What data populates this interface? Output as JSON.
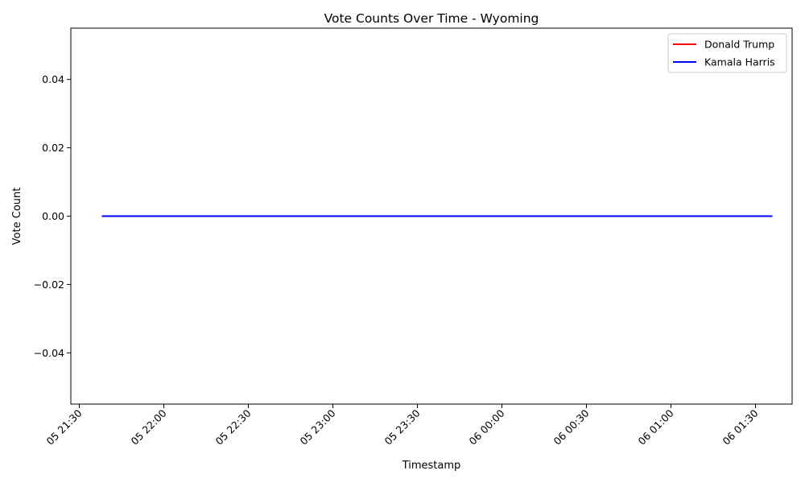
{
  "chart_data": {
    "type": "line",
    "title": "Vote Counts Over Time - Wyoming",
    "xlabel": "Timestamp",
    "ylabel": "Vote Count",
    "x_ticks": [
      "05 21:30",
      "05 22:00",
      "05 22:30",
      "05 23:00",
      "05 23:30",
      "06 00:00",
      "06 00:30",
      "06 01:00",
      "06 01:30"
    ],
    "y_ticks": [
      "−0.04",
      "−0.02",
      "0.00",
      "0.02",
      "0.04"
    ],
    "x_range": [
      "2024-11-05 21:27",
      "2024-11-06 01:43"
    ],
    "ylim": [
      -0.055,
      0.055
    ],
    "grid": false,
    "legend_position": "top-right",
    "series": [
      {
        "name": "Donald Trump",
        "color": "#ff0000",
        "points": [
          {
            "x": "2024-11-05 21:38",
            "y": 0
          },
          {
            "x": "2024-11-06 01:36",
            "y": 0
          }
        ]
      },
      {
        "name": "Kamala Harris",
        "color": "#0000ff",
        "points": [
          {
            "x": "2024-11-05 21:38",
            "y": 0
          },
          {
            "x": "2024-11-06 01:36",
            "y": 0
          }
        ]
      }
    ]
  }
}
